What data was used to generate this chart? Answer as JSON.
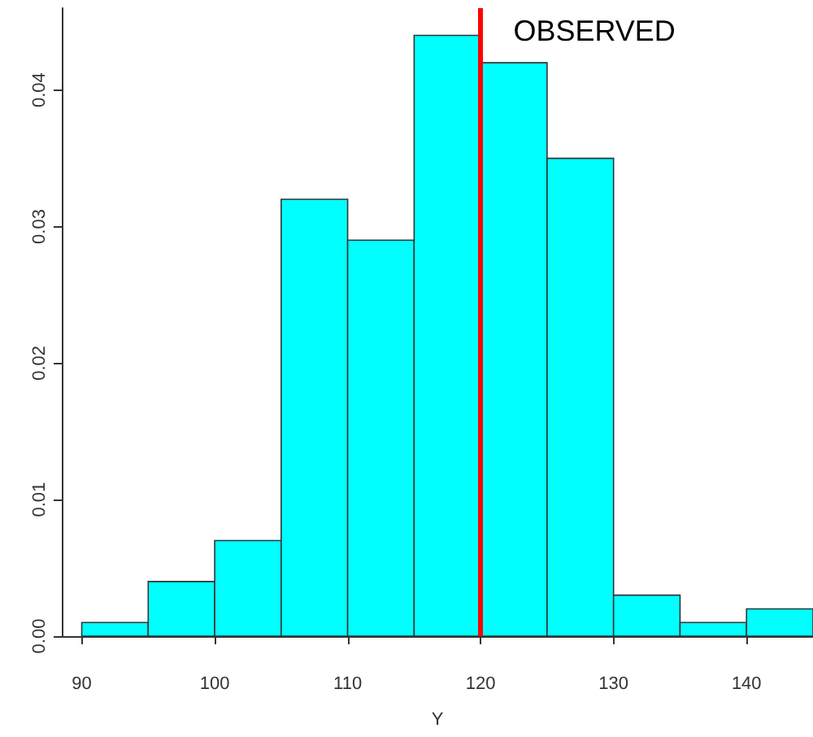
{
  "chart_data": {
    "type": "histogram",
    "xlabel": "Y",
    "bins": [
      90,
      95,
      100,
      105,
      110,
      115,
      120,
      125,
      130,
      135,
      140,
      145
    ],
    "values": [
      0.001,
      0.004,
      0.007,
      0.032,
      0.029,
      0.044,
      0.042,
      0.035,
      0.003,
      0.001,
      0.002
    ],
    "color": "#00ffff",
    "xlim": [
      88.5,
      145
    ],
    "xticks": [
      90,
      100,
      110,
      120,
      130,
      140
    ],
    "ylim": [
      0,
      0.046
    ],
    "yticks": [
      {
        "value": 0,
        "label": "0.00"
      },
      {
        "value": 0.01,
        "label": "0.01"
      },
      {
        "value": 0.02,
        "label": "0.02"
      },
      {
        "value": 0.03,
        "label": "0.03"
      },
      {
        "value": 0.04,
        "label": "0.04"
      }
    ],
    "ref_lines": [
      {
        "axis": "x",
        "value": 120,
        "label": "OBSERVED",
        "color": "#ff0000"
      }
    ],
    "grid": false
  }
}
